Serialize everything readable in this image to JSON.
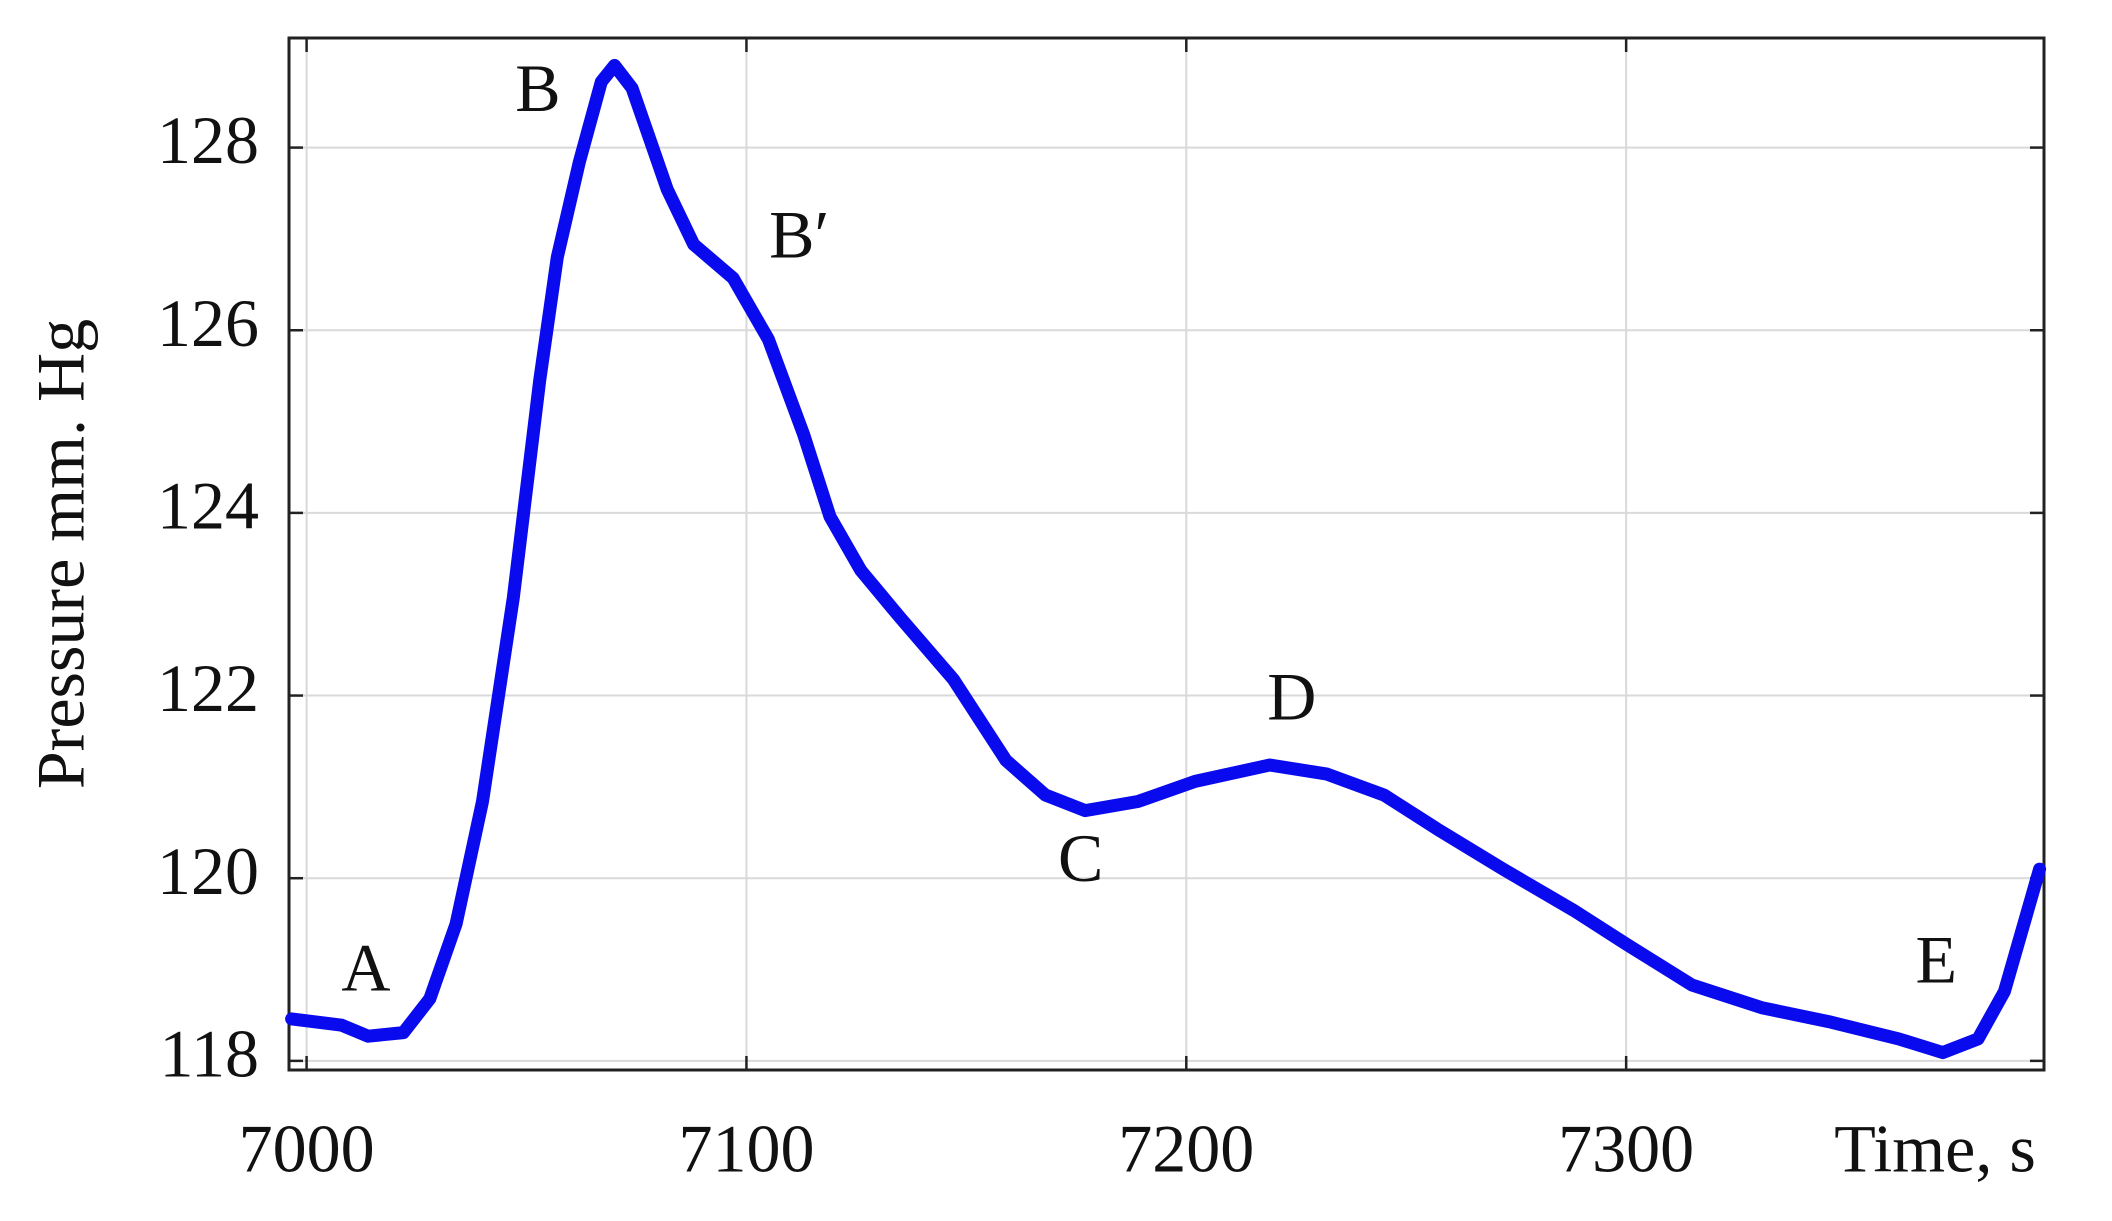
{
  "chart_data": {
    "type": "line",
    "y_label": "Pressure mm. Hg",
    "x_label": "Time, s",
    "x": [
      6996.6,
      7008,
      7014,
      7022,
      7028,
      7034,
      7040,
      7047,
      7053,
      7057,
      7062,
      7067,
      7070,
      7074,
      7082,
      7088,
      7097,
      7105,
      7113,
      7119,
      7126,
      7135,
      7147,
      7159,
      7168,
      7177,
      7189,
      7202,
      7219,
      7232,
      7245,
      7257,
      7272,
      7288,
      7300,
      7315,
      7331,
      7346,
      7362,
      7372,
      7380,
      7386,
      7394
    ],
    "series": [
      {
        "color": "#0a0aee",
        "values": [
          118.46,
          118.39,
          118.27,
          118.31,
          118.68,
          119.5,
          120.84,
          123.07,
          125.45,
          126.8,
          127.84,
          128.72,
          128.9,
          128.65,
          127.54,
          126.94,
          126.57,
          125.9,
          124.86,
          123.96,
          123.37,
          122.85,
          122.18,
          121.29,
          120.91,
          120.74,
          120.84,
          121.06,
          121.24,
          121.14,
          120.91,
          120.54,
          120.1,
          119.65,
          119.28,
          118.83,
          118.58,
          118.43,
          118.24,
          118.09,
          118.24,
          118.76,
          120.1
        ]
      }
    ],
    "annotations": [
      {
        "text": "A",
        "x": 7013.5,
        "y": 118.94
      },
      {
        "text": "B",
        "x": 7052.6,
        "y": 128.57
      },
      {
        "text": "B′",
        "x": 7112,
        "y": 126.97
      },
      {
        "text": "C",
        "x": 7176,
        "y": 120.14
      },
      {
        "text": "D",
        "x": 7224,
        "y": 121.91
      },
      {
        "text": "E",
        "x": 7370.5,
        "y": 119.03
      }
    ],
    "xlim": [
      6996,
      7395
    ],
    "xticks": [
      7000,
      7100,
      7200,
      7300
    ],
    "ylim": [
      117.9,
      129.2
    ],
    "yticks": [
      118,
      120,
      122,
      124,
      126,
      128
    ],
    "grid": true
  }
}
